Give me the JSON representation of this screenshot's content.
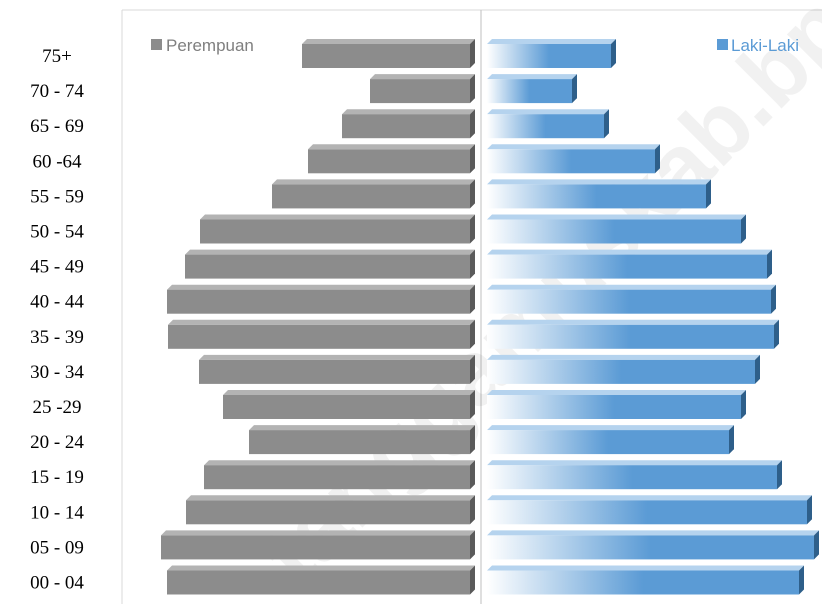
{
  "chart_data": {
    "type": "bar",
    "subtype": "population-pyramid",
    "title": "",
    "categories": [
      "75+",
      "70 - 74",
      "65 - 69",
      "60 -64",
      "55 - 59",
      "50 - 54",
      "45 - 49",
      "40 - 44",
      "35 - 39",
      "30 - 34",
      "25 -29",
      "20 - 24",
      "15 - 19",
      "10 - 14",
      "05 - 09",
      "00 - 04"
    ],
    "series": [
      {
        "name": "Perempuan",
        "side": "left",
        "color": "#8c8c8c",
        "values": [
          168,
          100,
          128,
          162,
          198,
          270,
          285,
          303,
          302,
          271,
          247,
          221,
          266,
          284,
          309,
          303
        ]
      },
      {
        "name": "Laki-Laki",
        "side": "right",
        "color": "#5b9bd5",
        "values": [
          124,
          85,
          117,
          168,
          219,
          254,
          280,
          284,
          287,
          268,
          254,
          242,
          290,
          320,
          327,
          312
        ]
      }
    ],
    "xlim": [
      0,
      340
    ],
    "legend": [
      "Perempuan",
      "Laki-Laki"
    ],
    "legend_placement": "top-left and top-right",
    "grid": false,
    "watermark": "tanggamuskab.bps.go.id"
  }
}
